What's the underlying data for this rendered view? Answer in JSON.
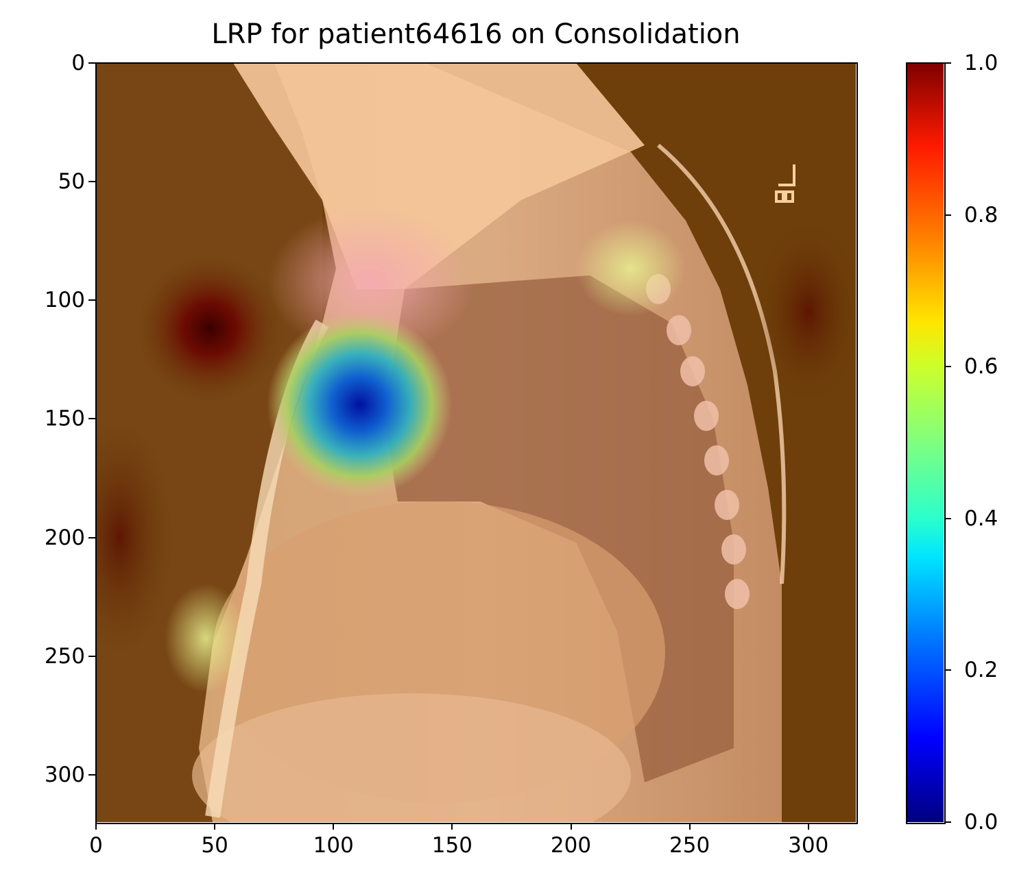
{
  "chart_data": {
    "type": "heatmap",
    "title": "LRP for patient64616 on Consolidation",
    "xlabel": "",
    "ylabel": "",
    "xlim": [
      0,
      320
    ],
    "ylim": [
      320,
      0
    ],
    "x_ticks": [
      0,
      50,
      100,
      150,
      200,
      250,
      300
    ],
    "y_ticks": [
      0,
      50,
      100,
      150,
      200,
      250,
      300
    ],
    "colorbar": {
      "colormap": "jet",
      "range": [
        0.0,
        1.0
      ],
      "ticks": [
        "0.0",
        "0.2",
        "0.4",
        "0.6",
        "0.8",
        "1.0"
      ]
    },
    "background_image": "lateral chest x-ray",
    "relevance_hotspots": [
      {
        "x": 48,
        "y": 112,
        "value": 1.0
      },
      {
        "x": 111,
        "y": 144,
        "value": 0.05
      },
      {
        "x": 300,
        "y": 105,
        "value": 0.95
      },
      {
        "x": 10,
        "y": 200,
        "value": 0.9
      }
    ]
  }
}
